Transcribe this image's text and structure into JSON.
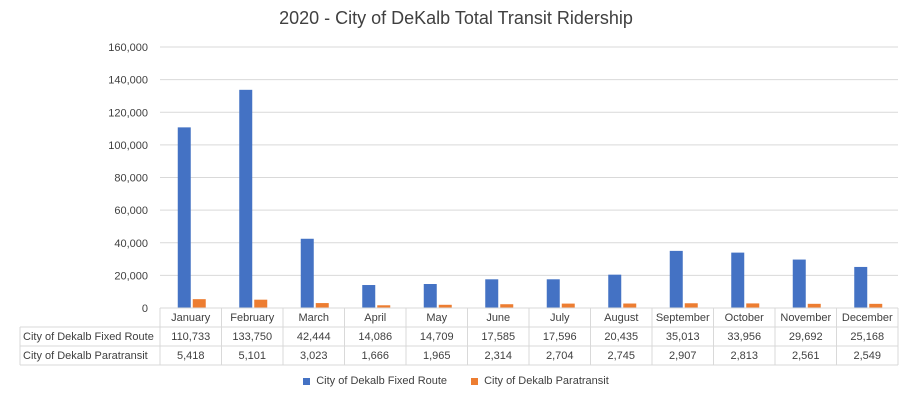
{
  "chart_data": {
    "type": "bar",
    "title": "2020  -  City of DeKalb Total Transit Ridership",
    "categories": [
      "January",
      "February",
      "March",
      "April",
      "May",
      "June",
      "July",
      "August",
      "September",
      "October",
      "November",
      "December"
    ],
    "series": [
      {
        "name": "City of Dekalb  Fixed Route",
        "color": "#4472c4",
        "values": [
          110733,
          133750,
          42444,
          14086,
          14709,
          17585,
          17596,
          20435,
          35013,
          33956,
          29692,
          25168
        ],
        "labels": [
          "110,733",
          "133,750",
          "42,444",
          "14,086",
          "14,709",
          "17,585",
          "17,596",
          "20,435",
          "35,013",
          "33,956",
          "29,692",
          "25,168"
        ]
      },
      {
        "name": "City of Dekalb  Paratransit",
        "color": "#ed7d31",
        "values": [
          5418,
          5101,
          3023,
          1666,
          1965,
          2314,
          2704,
          2745,
          2907,
          2813,
          2561,
          2549
        ],
        "labels": [
          "5,418",
          "5,101",
          "3,023",
          "1,666",
          "1,965",
          "2,314",
          "2,704",
          "2,745",
          "2,907",
          "2,813",
          "2,561",
          "2,549"
        ]
      }
    ],
    "ylim": [
      0,
      160000
    ],
    "yticks": [
      0,
      20000,
      40000,
      60000,
      80000,
      100000,
      120000,
      140000,
      160000
    ],
    "ytick_labels": [
      "0",
      "20,000",
      "40,000",
      "60,000",
      "80,000",
      "100,000",
      "120,000",
      "140,000",
      "160,000"
    ],
    "grid": true,
    "legend": "bottom",
    "data_table": true
  }
}
